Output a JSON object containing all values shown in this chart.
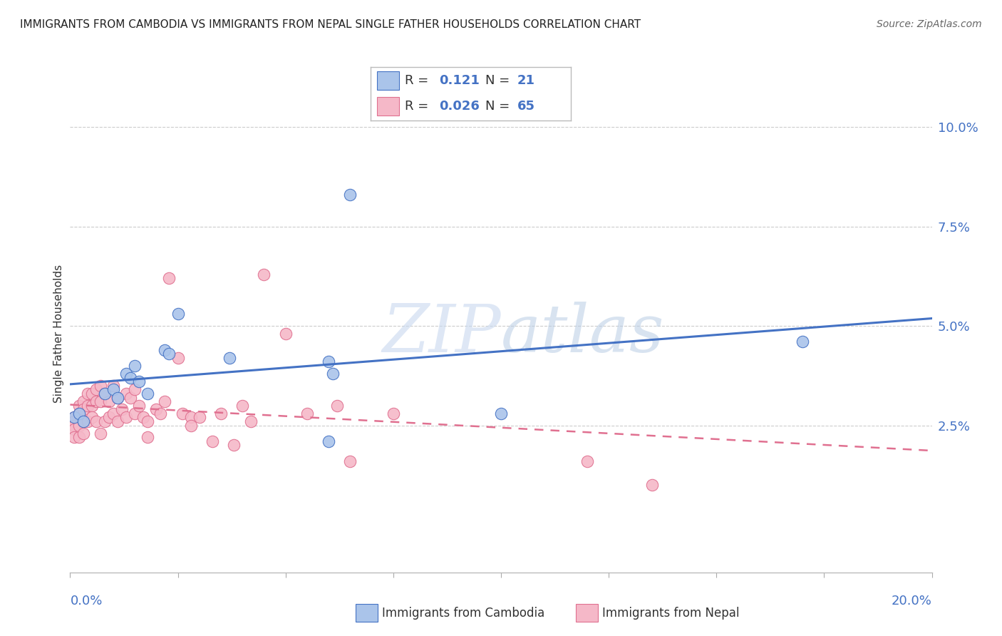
{
  "title": "IMMIGRANTS FROM CAMBODIA VS IMMIGRANTS FROM NEPAL SINGLE FATHER HOUSEHOLDS CORRELATION CHART",
  "source": "Source: ZipAtlas.com",
  "ylabel": "Single Father Households",
  "legend1_R": "0.121",
  "legend1_N": "21",
  "legend2_R": "0.026",
  "legend2_N": "65",
  "cambodia_color": "#aac4ea",
  "nepal_color": "#f5b8c8",
  "trend_cambodia_color": "#4472c4",
  "trend_nepal_color": "#e07090",
  "watermark_zip": "ZIP",
  "watermark_atlas": "atlas",
  "xlim": [
    0.0,
    0.2
  ],
  "ylim": [
    -0.012,
    0.108
  ],
  "ytick_vals": [
    0.025,
    0.05,
    0.075,
    0.1
  ],
  "ytick_labels": [
    "2.5%",
    "5.0%",
    "7.5%",
    "10.0%"
  ],
  "background_color": "#ffffff",
  "cambodia_x": [
    0.001,
    0.002,
    0.003,
    0.008,
    0.01,
    0.011,
    0.013,
    0.014,
    0.015,
    0.016,
    0.018,
    0.022,
    0.023,
    0.025,
    0.037,
    0.06,
    0.06,
    0.061,
    0.065,
    0.1,
    0.17
  ],
  "cambodia_y": [
    0.027,
    0.028,
    0.026,
    0.033,
    0.034,
    0.032,
    0.038,
    0.037,
    0.04,
    0.036,
    0.033,
    0.044,
    0.043,
    0.053,
    0.042,
    0.041,
    0.021,
    0.038,
    0.083,
    0.028,
    0.046
  ],
  "nepal_x": [
    0.001,
    0.001,
    0.001,
    0.001,
    0.001,
    0.002,
    0.002,
    0.002,
    0.002,
    0.003,
    0.003,
    0.003,
    0.003,
    0.004,
    0.004,
    0.004,
    0.005,
    0.005,
    0.005,
    0.006,
    0.006,
    0.006,
    0.007,
    0.007,
    0.007,
    0.008,
    0.008,
    0.009,
    0.009,
    0.01,
    0.01,
    0.011,
    0.011,
    0.012,
    0.013,
    0.013,
    0.014,
    0.015,
    0.015,
    0.016,
    0.017,
    0.018,
    0.018,
    0.02,
    0.021,
    0.022,
    0.023,
    0.025,
    0.026,
    0.028,
    0.028,
    0.03,
    0.033,
    0.035,
    0.038,
    0.04,
    0.042,
    0.045,
    0.05,
    0.055,
    0.062,
    0.065,
    0.075,
    0.12,
    0.135
  ],
  "nepal_y": [
    0.027,
    0.026,
    0.025,
    0.024,
    0.022,
    0.03,
    0.028,
    0.025,
    0.022,
    0.031,
    0.029,
    0.026,
    0.023,
    0.033,
    0.03,
    0.026,
    0.033,
    0.03,
    0.027,
    0.034,
    0.031,
    0.026,
    0.035,
    0.031,
    0.023,
    0.033,
    0.026,
    0.031,
    0.027,
    0.035,
    0.028,
    0.032,
    0.026,
    0.029,
    0.033,
    0.027,
    0.032,
    0.034,
    0.028,
    0.03,
    0.027,
    0.026,
    0.022,
    0.029,
    0.028,
    0.031,
    0.062,
    0.042,
    0.028,
    0.027,
    0.025,
    0.027,
    0.021,
    0.028,
    0.02,
    0.03,
    0.026,
    0.063,
    0.048,
    0.028,
    0.03,
    0.016,
    0.028,
    0.016,
    0.01
  ]
}
